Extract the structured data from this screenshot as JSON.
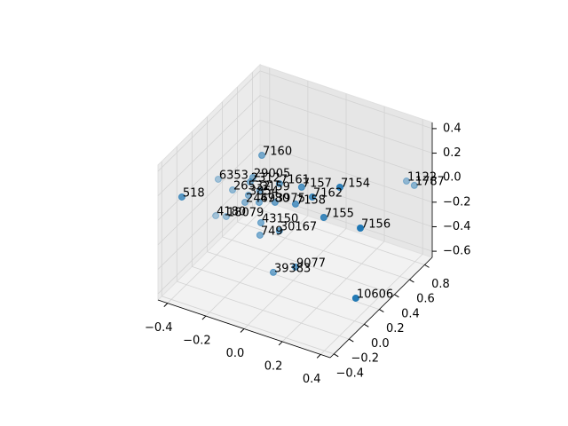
{
  "chart_data": {
    "type": "scatter3d",
    "labels": [
      "7160",
      "6353",
      "29005",
      "518",
      "26532",
      "2312",
      "3159",
      "3854",
      "2469",
      "4780",
      "3975",
      "7161",
      "7157",
      "7154",
      "1122",
      "1787",
      "7162",
      "7158",
      "7155",
      "7156",
      "4180",
      "18079",
      "43150",
      "30167",
      "749",
      "39383",
      "9077",
      "10606"
    ],
    "x": [
      -0.164,
      -0.392,
      -0.211,
      -0.424,
      -0.317,
      -0.225,
      -0.174,
      -0.234,
      -0.252,
      -0.178,
      -0.095,
      -0.072,
      0.044,
      0.244,
      0.355,
      0.396,
      0.1,
      0.012,
      0.16,
      0.351,
      -0.405,
      -0.35,
      -0.169,
      -0.072,
      -0.174,
      -0.104,
      0.012,
      0.327
    ],
    "y": [
      0.2,
      0.2,
      0.2,
      -0.2,
      0.2,
      0.2,
      0.2,
      0.2,
      0.2,
      0.2,
      0.2,
      0.2,
      0.2,
      0.2,
      0.8,
      0.8,
      0.2,
      0.2,
      0.2,
      0.2,
      0.2,
      0.2,
      0.2,
      0.2,
      0.2,
      0.2,
      0.2,
      0.2
    ],
    "z": [
      0.285,
      -0.029,
      0.08,
      0.052,
      -0.077,
      0.036,
      -0.01,
      -0.077,
      -0.144,
      -0.106,
      -0.062,
      0.102,
      0.134,
      0.238,
      -0.017,
      -0.031,
      0.083,
      -0.02,
      -0.052,
      -0.039,
      -0.333,
      -0.311,
      -0.267,
      -0.282,
      -0.371,
      -0.638,
      -0.534,
      -0.623
    ],
    "color": "#1f77b4",
    "xlim": [
      -0.45,
      0.45
    ],
    "ylim": [
      -0.45,
      0.9
    ],
    "zlim": [
      -0.65,
      0.45
    ],
    "xticks": [
      {
        "value": -0.4,
        "label": "−0.4"
      },
      {
        "value": -0.2,
        "label": "−0.2"
      },
      {
        "value": 0,
        "label": "0.0"
      },
      0.2,
      0.4
    ],
    "yticks": [
      {
        "value": -0.4,
        "label": "−0.4"
      },
      {
        "value": -0.2,
        "label": "−0.2"
      },
      {
        "value": 0,
        "label": "0.0"
      },
      0.2,
      0.4,
      0.6,
      0.8
    ],
    "zticks": [
      {
        "value": -0.6,
        "label": "−0.6"
      },
      {
        "value": -0.4,
        "label": "−0.4"
      },
      {
        "value": -0.2,
        "label": "−0.2"
      },
      {
        "value": 0,
        "label": "0.0"
      },
      0.2,
      0.4
    ],
    "grid": true
  }
}
